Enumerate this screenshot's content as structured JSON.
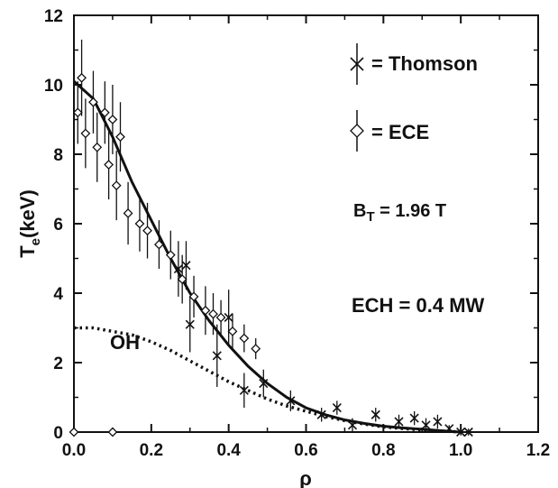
{
  "chart_data": {
    "type": "scatter",
    "xlabel": "ρ",
    "ylabel": "T",
    "ylabel_sub": "e",
    "ylabel_unit": "(keV)",
    "xlim": [
      0.0,
      1.2
    ],
    "ylim": [
      0,
      12
    ],
    "x_ticks": [
      "0.0",
      "0.2",
      "0.4",
      "0.6",
      "0.8",
      "1.0",
      "1.2"
    ],
    "y_ticks": [
      "0",
      "2",
      "4",
      "6",
      "8",
      "10",
      "12"
    ],
    "grid": false,
    "legend_position": "top-right",
    "legend": [
      {
        "marker": "x",
        "label": "= Thomson"
      },
      {
        "marker": "diamond",
        "label": "= ECE"
      }
    ],
    "annotations": {
      "bt_main": "B",
      "bt_sub": "T",
      "bt_value": " = 1.96 T",
      "ech": "ECH = 0.4 MW",
      "oh": "OH"
    },
    "series": [
      {
        "name": "Thomson",
        "marker": "x",
        "points": [
          {
            "x": 0.27,
            "y": 4.7,
            "err": 0.8
          },
          {
            "x": 0.29,
            "y": 4.8,
            "err": 0.7
          },
          {
            "x": 0.3,
            "y": 3.1,
            "err": 0.8
          },
          {
            "x": 0.37,
            "y": 2.2,
            "err": 0.9
          },
          {
            "x": 0.4,
            "y": 3.3,
            "err": 0.8
          },
          {
            "x": 0.44,
            "y": 1.2,
            "err": 0.5
          },
          {
            "x": 0.49,
            "y": 1.4,
            "err": 0.4
          },
          {
            "x": 0.56,
            "y": 0.9,
            "err": 0.3
          },
          {
            "x": 0.64,
            "y": 0.5,
            "err": 0.2
          },
          {
            "x": 0.68,
            "y": 0.7,
            "err": 0.2
          },
          {
            "x": 0.72,
            "y": 0.2,
            "err": 0.2
          },
          {
            "x": 0.78,
            "y": 0.5,
            "err": 0.2
          },
          {
            "x": 0.84,
            "y": 0.3,
            "err": 0.2
          },
          {
            "x": 0.88,
            "y": 0.4,
            "err": 0.2
          },
          {
            "x": 0.91,
            "y": 0.2,
            "err": 0.2
          },
          {
            "x": 0.94,
            "y": 0.3,
            "err": 0.2
          },
          {
            "x": 0.97,
            "y": 0.1,
            "err": 0.1
          },
          {
            "x": 1.0,
            "y": 0.0,
            "err": 0.1
          },
          {
            "x": 1.02,
            "y": 0.0,
            "err": 0.1
          }
        ]
      },
      {
        "name": "ECE",
        "marker": "diamond",
        "points": [
          {
            "x": 0.0,
            "y": 0.0,
            "err": 0
          },
          {
            "x": 0.01,
            "y": 9.2,
            "err": 0.9
          },
          {
            "x": 0.02,
            "y": 10.2,
            "err": 1.1
          },
          {
            "x": 0.03,
            "y": 8.6,
            "err": 1.0
          },
          {
            "x": 0.05,
            "y": 9.5,
            "err": 0.9
          },
          {
            "x": 0.06,
            "y": 8.2,
            "err": 1.0
          },
          {
            "x": 0.08,
            "y": 9.2,
            "err": 0.9
          },
          {
            "x": 0.09,
            "y": 7.7,
            "err": 1.0
          },
          {
            "x": 0.1,
            "y": 9.0,
            "err": 1.0
          },
          {
            "x": 0.1,
            "y": 0.0,
            "err": 0
          },
          {
            "x": 0.11,
            "y": 7.1,
            "err": 1.0
          },
          {
            "x": 0.12,
            "y": 8.5,
            "err": 1.0
          },
          {
            "x": 0.14,
            "y": 6.3,
            "err": 0.9
          },
          {
            "x": 0.17,
            "y": 6.0,
            "err": 0.8
          },
          {
            "x": 0.19,
            "y": 5.8,
            "err": 0.8
          },
          {
            "x": 0.22,
            "y": 5.4,
            "err": 0.7
          },
          {
            "x": 0.25,
            "y": 5.1,
            "err": 0.7
          },
          {
            "x": 0.28,
            "y": 4.4,
            "err": 0.7
          },
          {
            "x": 0.31,
            "y": 3.9,
            "err": 0.6
          },
          {
            "x": 0.34,
            "y": 3.5,
            "err": 0.7
          },
          {
            "x": 0.36,
            "y": 3.4,
            "err": 0.6
          },
          {
            "x": 0.38,
            "y": 3.3,
            "err": 0.5
          },
          {
            "x": 0.41,
            "y": 2.9,
            "err": 0.5
          },
          {
            "x": 0.44,
            "y": 2.7,
            "err": 0.4
          },
          {
            "x": 0.47,
            "y": 2.4,
            "err": 0.3
          }
        ]
      }
    ],
    "curves": [
      {
        "name": "fit",
        "style": "solid",
        "x": [
          0.0,
          0.05,
          0.1,
          0.15,
          0.2,
          0.25,
          0.3,
          0.35,
          0.4,
          0.45,
          0.5,
          0.55,
          0.6,
          0.65,
          0.7,
          0.75,
          0.8,
          0.85,
          0.9,
          0.95,
          1.0
        ],
        "y": [
          10.1,
          9.6,
          8.5,
          7.2,
          6.1,
          5.0,
          4.0,
          3.2,
          2.5,
          1.9,
          1.4,
          1.0,
          0.7,
          0.5,
          0.35,
          0.25,
          0.17,
          0.12,
          0.08,
          0.04,
          0.0
        ]
      },
      {
        "name": "OH",
        "style": "dotted",
        "x": [
          0.0,
          0.05,
          0.1,
          0.15,
          0.2,
          0.25,
          0.3,
          0.35,
          0.4,
          0.45,
          0.5,
          0.55,
          0.6,
          0.65,
          0.7,
          0.75,
          0.8,
          0.85,
          0.9,
          0.95,
          1.0
        ],
        "y": [
          3.0,
          3.0,
          2.9,
          2.8,
          2.6,
          2.35,
          2.05,
          1.75,
          1.45,
          1.2,
          0.95,
          0.75,
          0.6,
          0.45,
          0.33,
          0.23,
          0.15,
          0.1,
          0.06,
          0.03,
          0.0
        ]
      }
    ]
  }
}
